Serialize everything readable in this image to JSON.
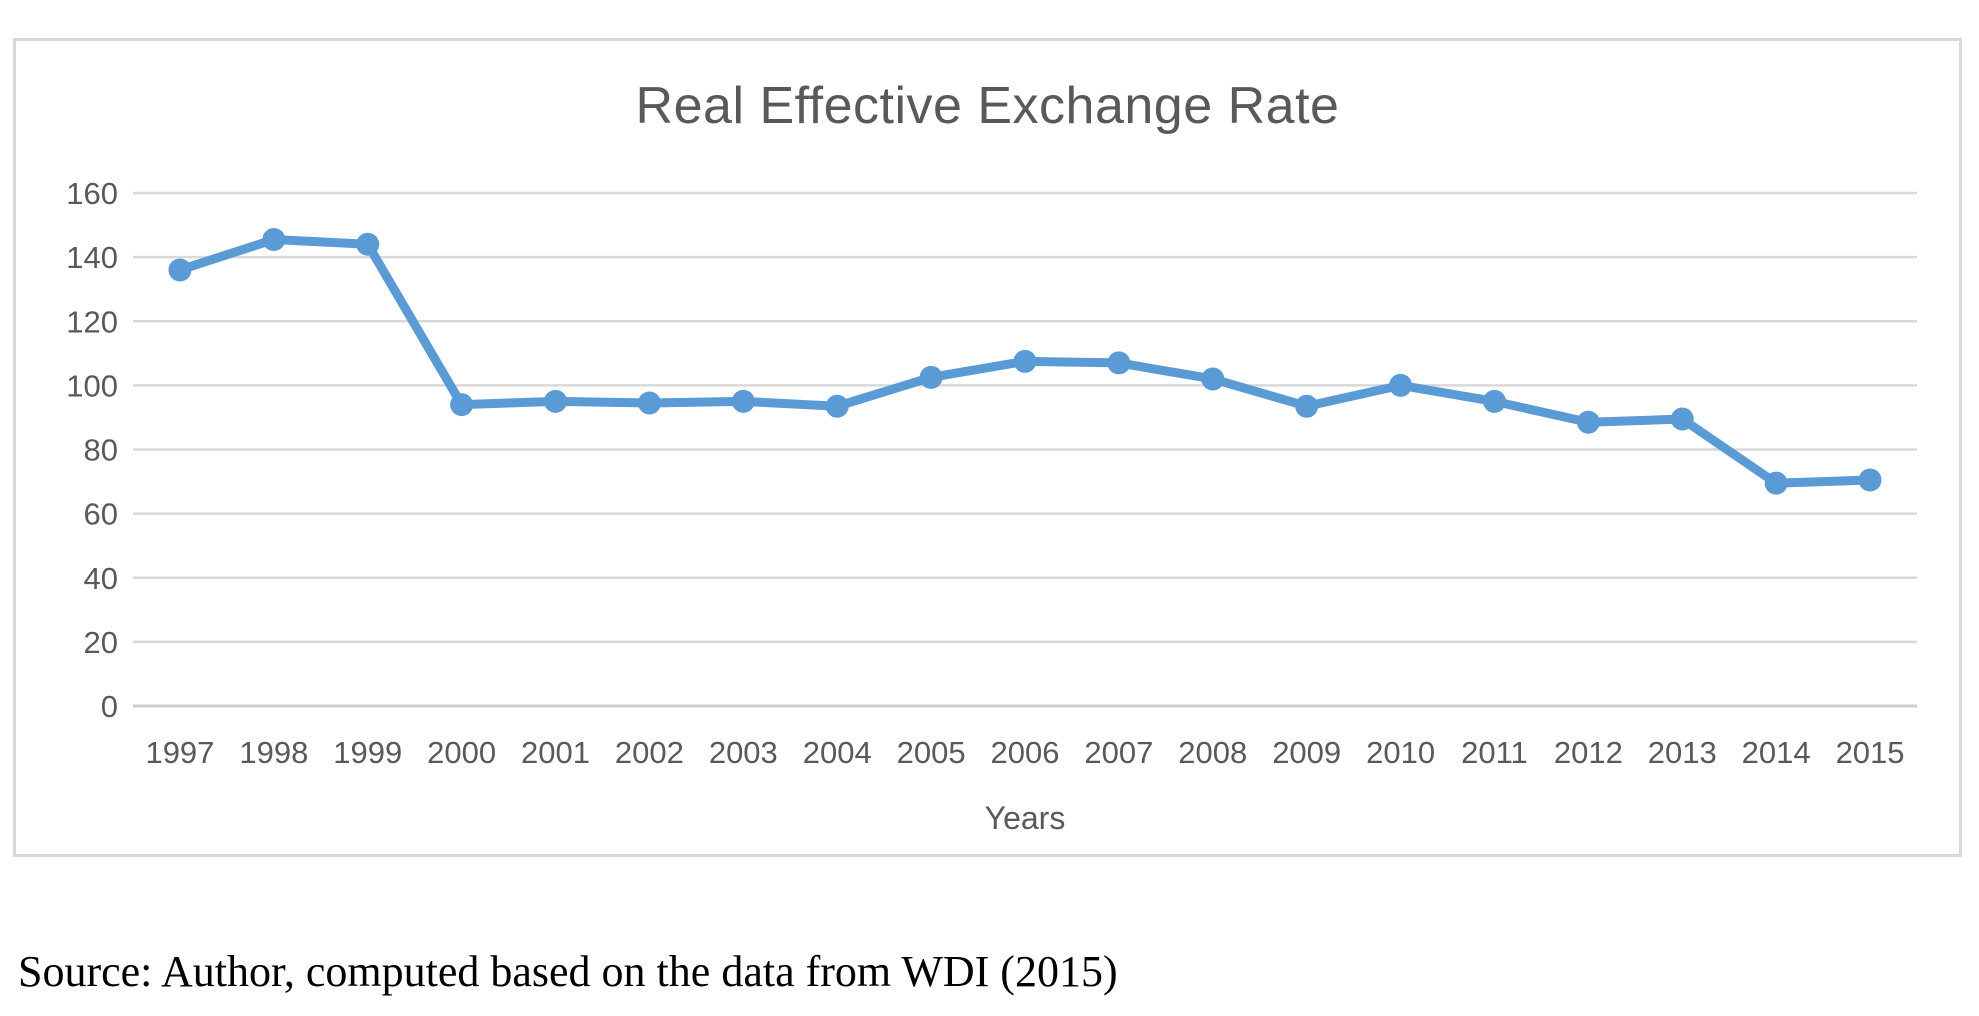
{
  "chart_data": {
    "type": "line",
    "title": "Real Effective Exchange Rate",
    "xlabel": "Years",
    "ylabel": "",
    "categories": [
      "1997",
      "1998",
      "1999",
      "2000",
      "2001",
      "2002",
      "2003",
      "2004",
      "2005",
      "2006",
      "2007",
      "2008",
      "2009",
      "2010",
      "2011",
      "2012",
      "2013",
      "2014",
      "2015"
    ],
    "series": [
      {
        "name": "Real Effective Exchange Rate",
        "values": [
          136,
          145.5,
          144,
          94,
          95,
          94.5,
          95,
          93.5,
          102.5,
          107.5,
          107,
          102,
          93.5,
          100,
          95,
          88.5,
          89.5,
          69.5,
          70.5
        ]
      }
    ],
    "ylim": [
      0,
      160
    ],
    "yticks": [
      0,
      20,
      40,
      60,
      80,
      100,
      120,
      140,
      160
    ],
    "grid": true,
    "legend": false,
    "marker": "circle"
  },
  "source": {
    "text": "Source: Author, computed based on the data from WDI (2015)"
  },
  "colors": {
    "series_line": "#5b9bd5",
    "gridline": "#d9d9d9",
    "axis_zero_line": "#cccccc",
    "axis_text": "#595959",
    "title_text": "#595959",
    "frame_border": "#d9d9d9",
    "source_text": "#000000"
  }
}
